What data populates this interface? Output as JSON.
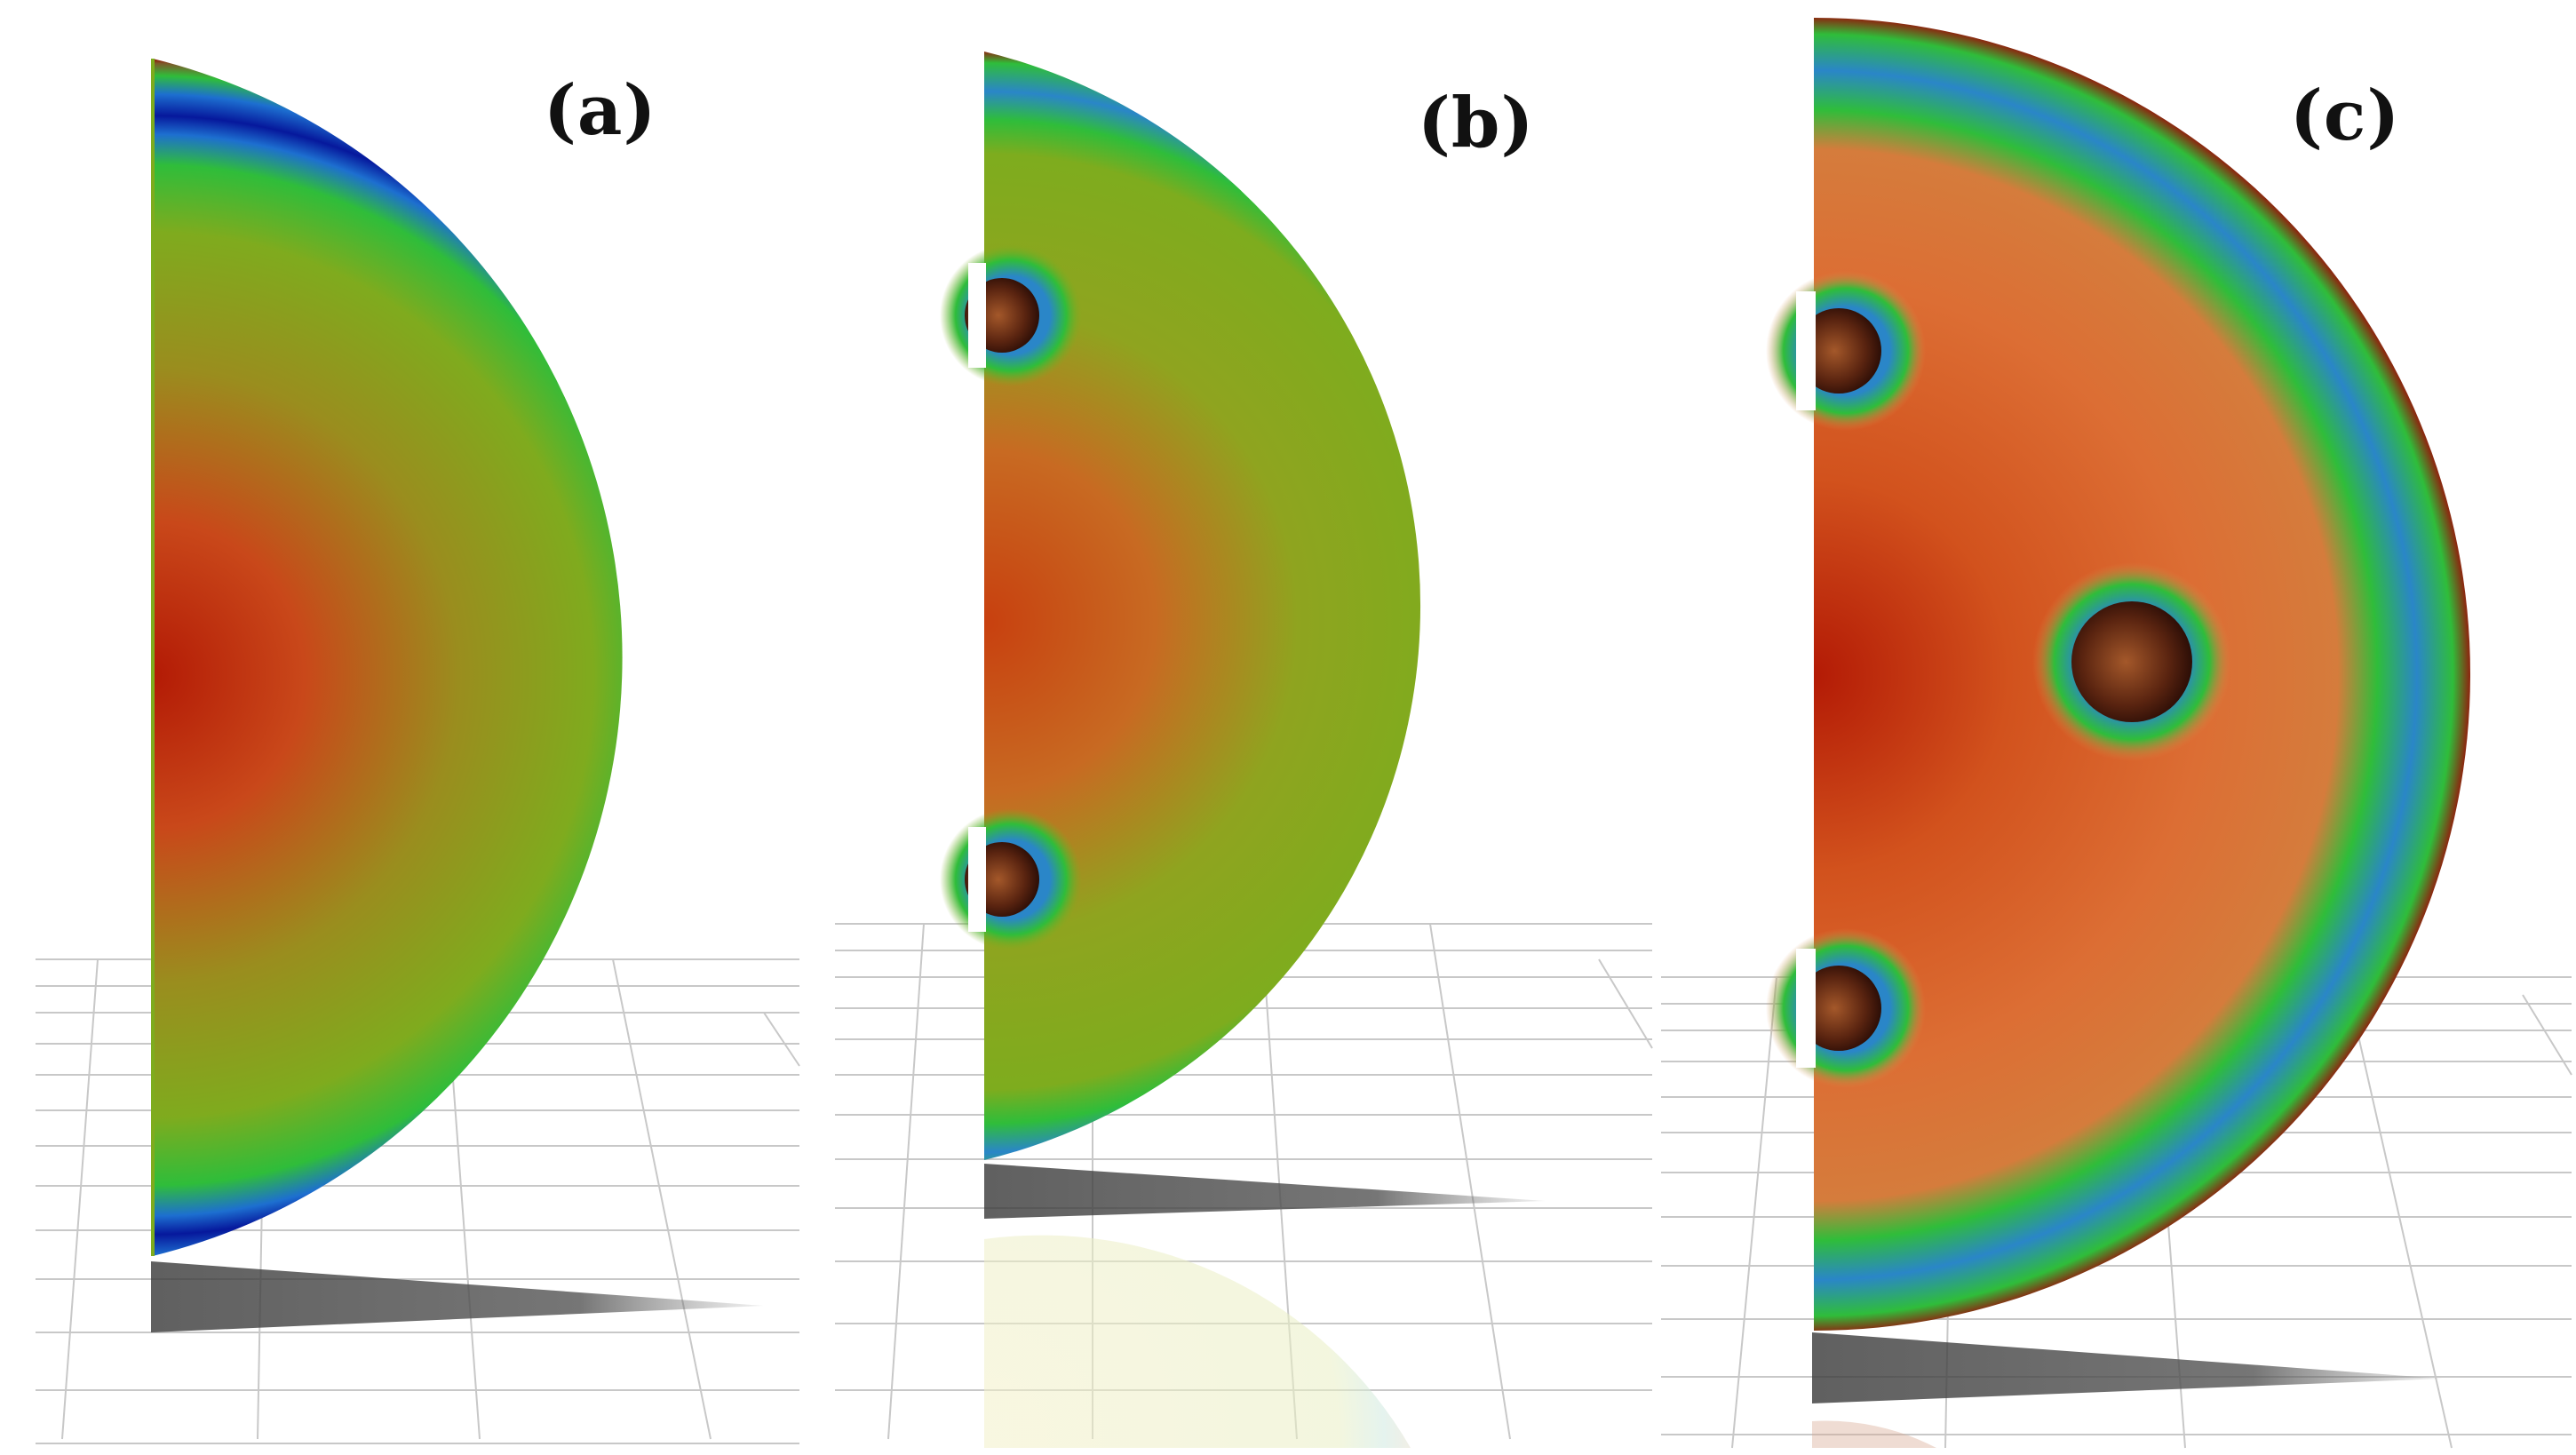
{
  "figure": {
    "panels": [
      {
        "id": "a",
        "label": "(a)",
        "holes": 0
      },
      {
        "id": "b",
        "label": "(b)",
        "holes": 2
      },
      {
        "id": "c",
        "label": "(c)",
        "holes": 3
      }
    ],
    "colors": {
      "hot": "#b31a05",
      "warm": "#d9622b",
      "mid": "#8aa91c",
      "green": "#2fbd3a",
      "blue": "#1d6fd0",
      "deep_blue": "#06189c",
      "ground_grid": "#c8c8c8",
      "shadow": "#555555"
    }
  }
}
